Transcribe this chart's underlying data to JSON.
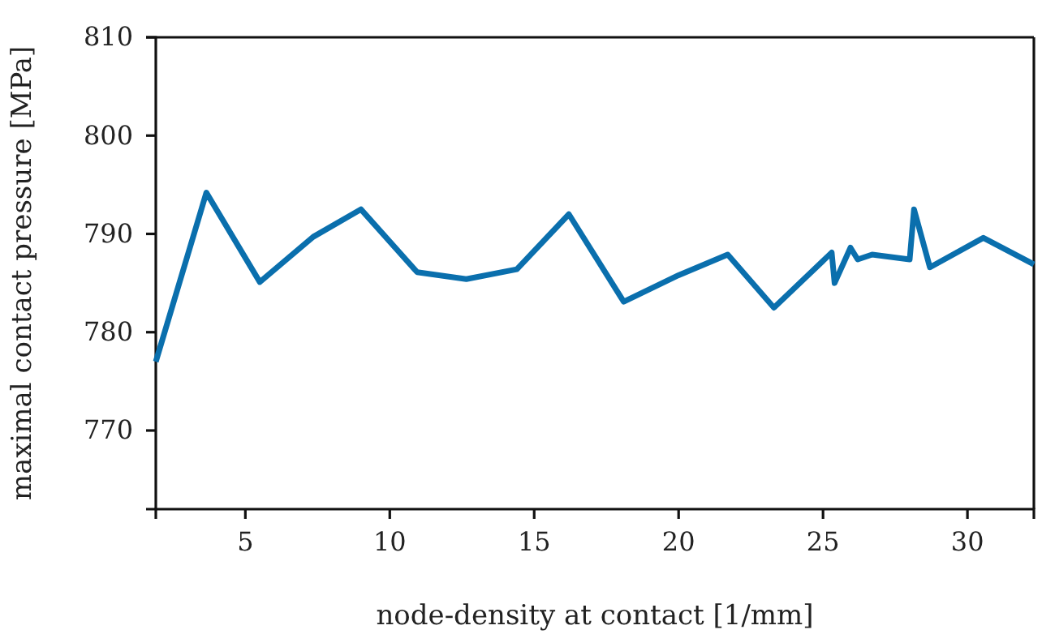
{
  "chart_data": {
    "type": "line",
    "xlabel": "node-density at contact [1/mm]",
    "ylabel": "maximal contact pressure [MPa]",
    "xlim": [
      1.9,
      32.3
    ],
    "xticks": [
      5,
      10,
      15,
      20,
      25,
      30
    ],
    "ylim": [
      762,
      810
    ],
    "yticks": [
      770,
      780,
      790,
      800,
      810
    ],
    "grid": false,
    "series": [
      {
        "color": "#0a6fad",
        "x": [
          1.9,
          3.65,
          5.5,
          7.35,
          9.0,
          10.95,
          12.65,
          14.4,
          16.2,
          18.1,
          20.0,
          21.7,
          23.3,
          25.3,
          25.4,
          25.95,
          26.2,
          26.7,
          28.0,
          28.15,
          28.7,
          30.55,
          32.3
        ],
        "values": [
          777,
          794.2,
          785.1,
          789.7,
          792.5,
          786.1,
          785.4,
          786.4,
          792.0,
          783.1,
          785.8,
          787.9,
          782.5,
          788.1,
          785.0,
          788.6,
          787.4,
          787.9,
          787.4,
          792.5,
          786.6,
          789.6,
          786.9
        ]
      }
    ]
  }
}
